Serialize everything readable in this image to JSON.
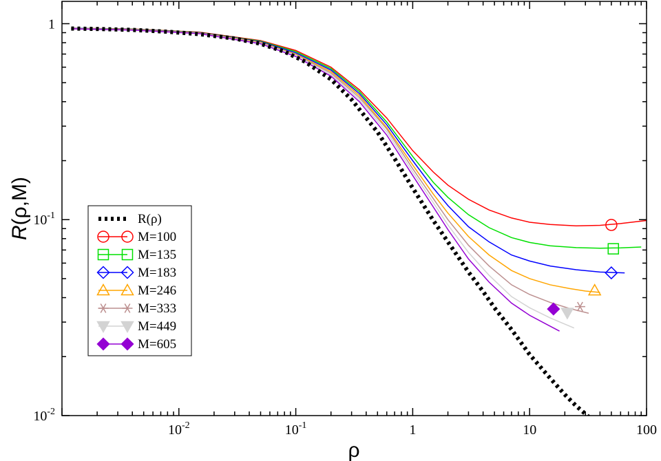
{
  "chart_data": {
    "type": "line",
    "xscale": "log",
    "yscale": "log",
    "xlim": [
      0.001,
      100
    ],
    "ylim": [
      0.01,
      1.3
    ],
    "xlabel": "ρ",
    "ylabel_italic": "R",
    "ylabel_rest": "(ρ,M)",
    "x_ticks": [
      {
        "value": 0.01,
        "base": "10",
        "exp": "-2"
      },
      {
        "value": 0.1,
        "base": "10",
        "exp": "-1"
      },
      {
        "value": 1,
        "base": "1",
        "exp": ""
      },
      {
        "value": 10,
        "base": "10",
        "exp": ""
      },
      {
        "value": 100,
        "base": "100",
        "exp": ""
      }
    ],
    "y_ticks": [
      {
        "value": 0.01,
        "base": "10",
        "exp": "-2"
      },
      {
        "value": 0.1,
        "base": "10",
        "exp": "-1"
      },
      {
        "value": 1,
        "base": "1",
        "exp": ""
      }
    ],
    "legend_position": "left-lower",
    "reference": {
      "name": "R(ρ)",
      "color": "#000000",
      "x": [
        0.0012,
        0.002,
        0.004,
        0.008,
        0.015,
        0.03,
        0.05,
        0.08,
        0.12,
        0.2,
        0.3,
        0.5,
        0.7,
        1.0,
        1.5,
        2.0,
        3.0,
        4.0,
        5.0,
        7.0,
        10.0,
        15.0,
        20.0,
        25.0,
        30.0,
        35.0
      ],
      "y": [
        0.945,
        0.94,
        0.93,
        0.91,
        0.885,
        0.84,
        0.79,
        0.72,
        0.64,
        0.52,
        0.41,
        0.28,
        0.205,
        0.145,
        0.099,
        0.077,
        0.054,
        0.043,
        0.0355,
        0.0275,
        0.0205,
        0.0155,
        0.0128,
        0.0112,
        0.0102,
        0.0094
      ]
    },
    "series": [
      {
        "name": "M=100",
        "color": "#ff0000",
        "marker": "circle",
        "x": [
          0.0012,
          0.004,
          0.015,
          0.05,
          0.1,
          0.2,
          0.35,
          0.6,
          1.0,
          1.5,
          2.0,
          3.0,
          4.5,
          7.0,
          10.0,
          15.0,
          25.0,
          40.0,
          60.0,
          80.0,
          100.0
        ],
        "y": [
          0.948,
          0.94,
          0.905,
          0.82,
          0.73,
          0.6,
          0.46,
          0.33,
          0.225,
          0.175,
          0.15,
          0.127,
          0.112,
          0.102,
          0.097,
          0.0945,
          0.093,
          0.0935,
          0.0955,
          0.0975,
          0.099
        ],
        "marker_x": 50,
        "marker_y": 0.094
      },
      {
        "name": "M=135",
        "color": "#00e000",
        "marker": "square",
        "x": [
          0.0012,
          0.004,
          0.015,
          0.05,
          0.1,
          0.2,
          0.35,
          0.6,
          1.0,
          1.5,
          2.0,
          3.0,
          4.5,
          7.0,
          10.0,
          15.0,
          25.0,
          40.0,
          60.0,
          90.0
        ],
        "y": [
          0.947,
          0.938,
          0.902,
          0.815,
          0.72,
          0.59,
          0.45,
          0.315,
          0.21,
          0.155,
          0.13,
          0.106,
          0.091,
          0.081,
          0.0765,
          0.0735,
          0.072,
          0.0715,
          0.0718,
          0.0725
        ],
        "marker_x": 52,
        "marker_y": 0.071
      },
      {
        "name": "M=183",
        "color": "#0000ff",
        "marker": "diamond",
        "x": [
          0.0012,
          0.004,
          0.015,
          0.05,
          0.1,
          0.2,
          0.35,
          0.6,
          1.0,
          1.5,
          2.0,
          3.0,
          4.5,
          7.0,
          10.0,
          15.0,
          25.0,
          40.0,
          65.0
        ],
        "y": [
          0.946,
          0.936,
          0.9,
          0.81,
          0.71,
          0.58,
          0.44,
          0.305,
          0.2,
          0.145,
          0.118,
          0.092,
          0.077,
          0.066,
          0.0615,
          0.058,
          0.0555,
          0.054,
          0.0535
        ],
        "marker_x": 50,
        "marker_y": 0.0535
      },
      {
        "name": "M=246",
        "color": "#ffa500",
        "marker": "triangle-up",
        "x": [
          0.0012,
          0.004,
          0.015,
          0.05,
          0.1,
          0.2,
          0.35,
          0.6,
          1.0,
          1.5,
          2.0,
          3.0,
          4.5,
          7.0,
          10.0,
          15.0,
          22.0,
          30.0,
          40.0
        ],
        "y": [
          0.945,
          0.934,
          0.897,
          0.805,
          0.7,
          0.57,
          0.43,
          0.295,
          0.19,
          0.135,
          0.108,
          0.082,
          0.066,
          0.055,
          0.05,
          0.0465,
          0.0445,
          0.0432,
          0.0425
        ],
        "marker_x": 36,
        "marker_y": 0.0435
      },
      {
        "name": "M=333",
        "color": "#bc8f8f",
        "marker": "asterisk",
        "x": [
          0.0012,
          0.004,
          0.015,
          0.05,
          0.1,
          0.2,
          0.35,
          0.6,
          1.0,
          1.5,
          2.0,
          3.0,
          4.5,
          7.0,
          10.0,
          15.0,
          22.0,
          32.0
        ],
        "y": [
          0.944,
          0.932,
          0.895,
          0.8,
          0.695,
          0.56,
          0.42,
          0.29,
          0.182,
          0.128,
          0.1,
          0.074,
          0.058,
          0.0465,
          0.0415,
          0.0378,
          0.0352,
          0.0333
        ],
        "marker_x": 27,
        "marker_y": 0.036
      },
      {
        "name": "M=449",
        "color": "#d3d3d3",
        "marker": "triangle-down",
        "x": [
          0.0012,
          0.004,
          0.015,
          0.05,
          0.1,
          0.2,
          0.35,
          0.6,
          1.0,
          1.5,
          2.0,
          3.0,
          4.5,
          7.0,
          10.0,
          15.0,
          20.0,
          24.0
        ],
        "y": [
          0.943,
          0.93,
          0.893,
          0.795,
          0.69,
          0.55,
          0.41,
          0.28,
          0.175,
          0.122,
          0.094,
          0.068,
          0.052,
          0.0405,
          0.0355,
          0.0315,
          0.0293,
          0.028
        ],
        "marker_x": 21,
        "marker_y": 0.0335
      },
      {
        "name": "M=605",
        "color": "#9400d3",
        "marker": "diamond-filled",
        "x": [
          0.0012,
          0.004,
          0.015,
          0.05,
          0.1,
          0.2,
          0.35,
          0.6,
          1.0,
          1.5,
          2.0,
          3.0,
          4.5,
          7.0,
          10.0,
          14.0,
          18.0
        ],
        "y": [
          0.942,
          0.928,
          0.89,
          0.79,
          0.68,
          0.54,
          0.4,
          0.27,
          0.168,
          0.116,
          0.089,
          0.063,
          0.048,
          0.0375,
          0.0325,
          0.0292,
          0.027
        ],
        "marker_x": 16,
        "marker_y": 0.035
      }
    ]
  }
}
